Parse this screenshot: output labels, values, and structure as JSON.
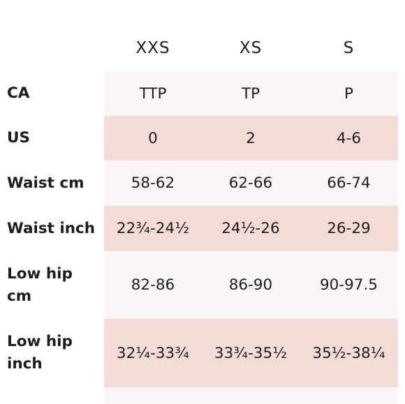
{
  "table": {
    "columns": [
      "XXS",
      "XS",
      "S"
    ],
    "rows": [
      {
        "label": "CA",
        "values": [
          "TTP",
          "TP",
          "P"
        ],
        "shade": "light"
      },
      {
        "label": "US",
        "values": [
          "0",
          "2",
          "4-6"
        ],
        "shade": "pink"
      },
      {
        "label": "Waist cm",
        "values": [
          "58-62",
          "62-66",
          "66-74"
        ],
        "shade": "light"
      },
      {
        "label": "Waist inch",
        "values": [
          "22¾-24½",
          "24½-26",
          "26-29"
        ],
        "shade": "pink"
      },
      {
        "label": "Low hip cm",
        "values": [
          "82-86",
          "86-90",
          "90-97.5"
        ],
        "shade": "light"
      },
      {
        "label": "Low hip inch",
        "values": [
          "32¼-33¾",
          "33¾-35½",
          "35½-38¼"
        ],
        "shade": "pink"
      }
    ]
  },
  "colors": {
    "row_light": "#f9f6f5",
    "row_pink": "#f3dcd8",
    "text": "#1d1d1d"
  }
}
